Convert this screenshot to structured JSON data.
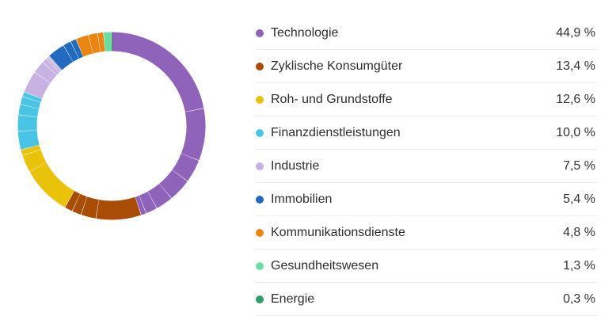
{
  "chart_data": {
    "type": "pie",
    "variant": "donut",
    "title": "",
    "categories": [
      "Technologie",
      "Zyklische Konsumgüter",
      "Roh- und Grundstoffe",
      "Finanzdienstleistungen",
      "Industrie",
      "Immobilien",
      "Kommunikationsdienste",
      "Gesundheitswesen",
      "Energie"
    ],
    "values": [
      44.9,
      13.4,
      12.6,
      10.0,
      7.5,
      5.4,
      4.8,
      1.3,
      0.3
    ],
    "unit": "%",
    "colors": [
      "#8e63b9",
      "#a94c06",
      "#e8c30a",
      "#4ac4e5",
      "#c8b2e3",
      "#206bbf",
      "#ea8610",
      "#6ddca3",
      "#2a9f66"
    ],
    "sub_segments": {
      "Technologie": [
        22.0,
        9.0,
        4.0,
        4.0,
        3.0,
        2.0,
        0.9
      ],
      "Zyklische Konsumgüter": [
        7.8,
        2.6,
        1.6,
        1.4
      ],
      "Roh- und Grundstoffe": [
        8.6,
        3.0,
        1.0
      ],
      "Finanzdienstleistungen": [
        3.2,
        2.8,
        1.8,
        1.4,
        0.8
      ],
      "Industrie": [
        3.8,
        2.2,
        0.8,
        0.4,
        0.3
      ],
      "Immobilien": [
        3.0,
        1.4,
        1.0
      ],
      "Kommunikationsdienste": [
        2.2,
        1.6,
        1.0
      ],
      "Gesundheitswesen": [
        1.3
      ],
      "Energie": [
        0.3
      ]
    },
    "legend_position": "right",
    "start_angle_deg": 0,
    "direction": "clockwise"
  },
  "legend": {
    "items": [
      {
        "label": "Technologie",
        "value": "44,9 %",
        "color": "#8e63b9"
      },
      {
        "label": "Zyklische Konsumgüter",
        "value": "13,4 %",
        "color": "#a94c06"
      },
      {
        "label": "Roh- und Grundstoffe",
        "value": "12,6 %",
        "color": "#e8c30a"
      },
      {
        "label": "Finanzdienstleistungen",
        "value": "10,0 %",
        "color": "#4ac4e5"
      },
      {
        "label": "Industrie",
        "value": "7,5 %",
        "color": "#c8b2e3"
      },
      {
        "label": "Immobilien",
        "value": "5,4 %",
        "color": "#206bbf"
      },
      {
        "label": "Kommunikationsdienste",
        "value": "4,8 %",
        "color": "#ea8610"
      },
      {
        "label": "Gesundheitswesen",
        "value": "1,3 %",
        "color": "#6ddca3"
      },
      {
        "label": "Energie",
        "value": "0,3 %",
        "color": "#2a9f66"
      }
    ]
  }
}
